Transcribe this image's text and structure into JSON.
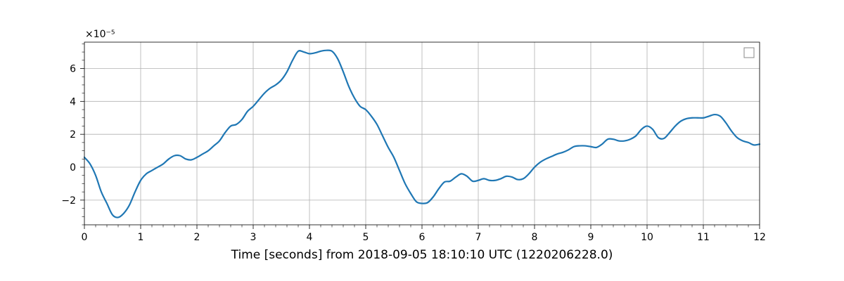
{
  "chart_data": {
    "type": "line",
    "xlabel": "Time [seconds] from 2018-09-05 18:10:10 UTC (1220206228.0)",
    "ylabel": "",
    "y_offset_text": "×10⁻⁵",
    "xlim": [
      0,
      12
    ],
    "ylim": [
      -3.5,
      7.6
    ],
    "x_ticks": [
      0,
      1,
      2,
      3,
      4,
      5,
      6,
      7,
      8,
      9,
      10,
      11,
      12
    ],
    "x_tick_labels": [
      "0",
      "1",
      "2",
      "3",
      "4",
      "5",
      "6",
      "7",
      "8",
      "9",
      "10",
      "11",
      "12"
    ],
    "y_ticks": [
      -2,
      0,
      2,
      4,
      6
    ],
    "y_tick_labels": [
      "−2",
      "0",
      "2",
      "4",
      "6"
    ],
    "y_scale_factor": 1e-05,
    "grid": true,
    "legend": "top-right",
    "series": [
      {
        "color": "#1f77b4",
        "x": [
          0,
          0.1,
          0.2,
          0.3,
          0.4,
          0.5,
          0.6,
          0.7,
          0.8,
          0.9,
          1.0,
          1.1,
          1.2,
          1.3,
          1.4,
          1.5,
          1.6,
          1.7,
          1.8,
          1.9,
          2.0,
          2.1,
          2.2,
          2.3,
          2.4,
          2.5,
          2.6,
          2.7,
          2.8,
          2.9,
          3.0,
          3.1,
          3.2,
          3.3,
          3.4,
          3.5,
          3.6,
          3.7,
          3.8,
          3.9,
          4.0,
          4.1,
          4.2,
          4.3,
          4.4,
          4.5,
          4.6,
          4.7,
          4.8,
          4.9,
          5.0,
          5.1,
          5.2,
          5.3,
          5.4,
          5.5,
          5.6,
          5.7,
          5.8,
          5.9,
          6.0,
          6.1,
          6.2,
          6.3,
          6.4,
          6.5,
          6.6,
          6.7,
          6.8,
          6.9,
          7.0,
          7.1,
          7.2,
          7.3,
          7.4,
          7.5,
          7.6,
          7.7,
          7.8,
          7.9,
          8.0,
          8.1,
          8.2,
          8.3,
          8.4,
          8.5,
          8.6,
          8.7,
          8.8,
          8.9,
          9.0,
          9.1,
          9.2,
          9.3,
          9.4,
          9.5,
          9.6,
          9.7,
          9.8,
          9.9,
          10.0,
          10.1,
          10.2,
          10.3,
          10.4,
          10.5,
          10.6,
          10.7,
          10.8,
          10.9,
          11.0,
          11.1,
          11.2,
          11.3,
          11.4,
          11.5,
          11.6,
          11.7,
          11.8,
          11.9,
          12.0
        ],
        "y": [
          0.6,
          0.2,
          -0.5,
          -1.5,
          -2.2,
          -2.9,
          -3.05,
          -2.8,
          -2.3,
          -1.5,
          -0.8,
          -0.4,
          -0.2,
          0.0,
          0.2,
          0.5,
          0.7,
          0.7,
          0.5,
          0.45,
          0.6,
          0.8,
          1.0,
          1.3,
          1.6,
          2.1,
          2.5,
          2.6,
          2.9,
          3.4,
          3.7,
          4.1,
          4.5,
          4.8,
          5.0,
          5.3,
          5.8,
          6.5,
          7.05,
          7.0,
          6.9,
          6.95,
          7.05,
          7.1,
          7.05,
          6.6,
          5.8,
          4.9,
          4.2,
          3.7,
          3.5,
          3.1,
          2.6,
          1.9,
          1.2,
          0.6,
          -0.2,
          -1.0,
          -1.6,
          -2.1,
          -2.2,
          -2.15,
          -1.8,
          -1.3,
          -0.9,
          -0.85,
          -0.6,
          -0.4,
          -0.55,
          -0.85,
          -0.8,
          -0.7,
          -0.8,
          -0.8,
          -0.7,
          -0.55,
          -0.6,
          -0.75,
          -0.7,
          -0.4,
          0.0,
          0.3,
          0.5,
          0.65,
          0.8,
          0.9,
          1.05,
          1.25,
          1.3,
          1.3,
          1.25,
          1.2,
          1.4,
          1.7,
          1.7,
          1.6,
          1.6,
          1.7,
          1.9,
          2.3,
          2.5,
          2.3,
          1.8,
          1.75,
          2.1,
          2.5,
          2.8,
          2.95,
          3.0,
          3.0,
          3.0,
          3.1,
          3.2,
          3.1,
          2.7,
          2.2,
          1.8,
          1.6,
          1.5,
          1.35,
          1.4
        ]
      }
    ]
  }
}
